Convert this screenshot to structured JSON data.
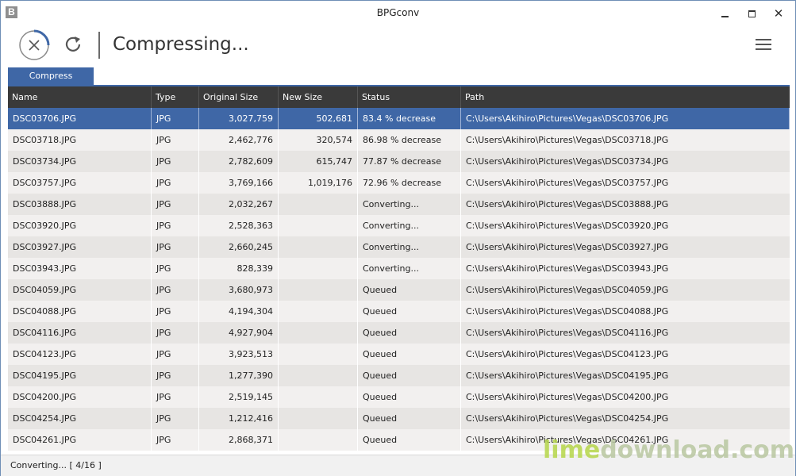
{
  "window": {
    "title": "BPGconv",
    "icon_letter": "B"
  },
  "toolbar": {
    "status_title": "Compressing..."
  },
  "tabs": [
    {
      "label": "Compress"
    }
  ],
  "table": {
    "columns": [
      "Name",
      "Type",
      "Original Size",
      "New Size",
      "Status",
      "Path"
    ],
    "rows": [
      {
        "name": "DSC03706.JPG",
        "type": "JPG",
        "original": "3,027,759",
        "new": "502,681",
        "status": "83.4 % decrease",
        "path": "C:\\Users\\Akihiro\\Pictures\\Vegas\\DSC03706.JPG"
      },
      {
        "name": "DSC03718.JPG",
        "type": "JPG",
        "original": "2,462,776",
        "new": "320,574",
        "status": "86.98 % decrease",
        "path": "C:\\Users\\Akihiro\\Pictures\\Vegas\\DSC03718.JPG"
      },
      {
        "name": "DSC03734.JPG",
        "type": "JPG",
        "original": "2,782,609",
        "new": "615,747",
        "status": "77.87 % decrease",
        "path": "C:\\Users\\Akihiro\\Pictures\\Vegas\\DSC03734.JPG"
      },
      {
        "name": "DSC03757.JPG",
        "type": "JPG",
        "original": "3,769,166",
        "new": "1,019,176",
        "status": "72.96 % decrease",
        "path": "C:\\Users\\Akihiro\\Pictures\\Vegas\\DSC03757.JPG"
      },
      {
        "name": "DSC03888.JPG",
        "type": "JPG",
        "original": "2,032,267",
        "new": "",
        "status": "Converting...",
        "path": "C:\\Users\\Akihiro\\Pictures\\Vegas\\DSC03888.JPG"
      },
      {
        "name": "DSC03920.JPG",
        "type": "JPG",
        "original": "2,528,363",
        "new": "",
        "status": "Converting...",
        "path": "C:\\Users\\Akihiro\\Pictures\\Vegas\\DSC03920.JPG"
      },
      {
        "name": "DSC03927.JPG",
        "type": "JPG",
        "original": "2,660,245",
        "new": "",
        "status": "Converting...",
        "path": "C:\\Users\\Akihiro\\Pictures\\Vegas\\DSC03927.JPG"
      },
      {
        "name": "DSC03943.JPG",
        "type": "JPG",
        "original": "828,339",
        "new": "",
        "status": "Converting...",
        "path": "C:\\Users\\Akihiro\\Pictures\\Vegas\\DSC03943.JPG"
      },
      {
        "name": "DSC04059.JPG",
        "type": "JPG",
        "original": "3,680,973",
        "new": "",
        "status": "Queued",
        "path": "C:\\Users\\Akihiro\\Pictures\\Vegas\\DSC04059.JPG"
      },
      {
        "name": "DSC04088.JPG",
        "type": "JPG",
        "original": "4,194,304",
        "new": "",
        "status": "Queued",
        "path": "C:\\Users\\Akihiro\\Pictures\\Vegas\\DSC04088.JPG"
      },
      {
        "name": "DSC04116.JPG",
        "type": "JPG",
        "original": "4,927,904",
        "new": "",
        "status": "Queued",
        "path": "C:\\Users\\Akihiro\\Pictures\\Vegas\\DSC04116.JPG"
      },
      {
        "name": "DSC04123.JPG",
        "type": "JPG",
        "original": "3,923,513",
        "new": "",
        "status": "Queued",
        "path": "C:\\Users\\Akihiro\\Pictures\\Vegas\\DSC04123.JPG"
      },
      {
        "name": "DSC04195.JPG",
        "type": "JPG",
        "original": "1,277,390",
        "new": "",
        "status": "Queued",
        "path": "C:\\Users\\Akihiro\\Pictures\\Vegas\\DSC04195.JPG"
      },
      {
        "name": "DSC04200.JPG",
        "type": "JPG",
        "original": "2,519,145",
        "new": "",
        "status": "Queued",
        "path": "C:\\Users\\Akihiro\\Pictures\\Vegas\\DSC04200.JPG"
      },
      {
        "name": "DSC04254.JPG",
        "type": "JPG",
        "original": "1,212,416",
        "new": "",
        "status": "Queued",
        "path": "C:\\Users\\Akihiro\\Pictures\\Vegas\\DSC04254.JPG"
      },
      {
        "name": "DSC04261.JPG",
        "type": "JPG",
        "original": "2,868,371",
        "new": "",
        "status": "Queued",
        "path": "C:\\Users\\Akihiro\\Pictures\\Vegas\\DSC04261.JPG"
      }
    ]
  },
  "statusbar": {
    "text": "Converting... [ 4/16 ]"
  },
  "watermark": {
    "part1": "lime",
    "part2": "download.com"
  },
  "progress": {
    "completed": 4,
    "total": 16,
    "spinner_fraction": 0.25
  },
  "colors": {
    "accent": "#3f67a6",
    "header_bg": "#3a3a3a"
  },
  "icons": {
    "stop": "close-circle-icon",
    "refresh": "refresh-icon",
    "menu": "hamburger-menu-icon"
  }
}
